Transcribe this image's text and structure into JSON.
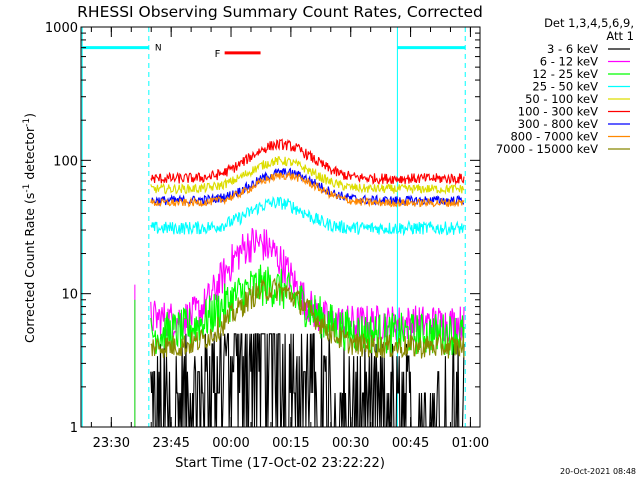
{
  "chart_data": {
    "type": "line",
    "title": "RHESSI Observing Summary Count Rates, Corrected",
    "xlabel": "Start Time (17-Oct-02 23:22:22)",
    "ylabel": "Corrected Count Rate (s-1 detector-1)",
    "ylabel_parts": {
      "main": "Corrected Count Rate (s",
      "sup1": "-1",
      "mid": " detector",
      "sup2": "-1",
      "close": ")"
    },
    "y_scale": "log",
    "ylim": [
      1,
      1000
    ],
    "y_ticks": [
      {
        "value": 1,
        "label": "1"
      },
      {
        "value": 10,
        "label": "10"
      },
      {
        "value": 100,
        "label": "100"
      },
      {
        "value": 1000,
        "label": "1000"
      }
    ],
    "xlim": [
      0,
      100
    ],
    "x_ticks": [
      {
        "value": 7.6,
        "label": "23:30"
      },
      {
        "value": 22.6,
        "label": "23:45"
      },
      {
        "value": 37.6,
        "label": "00:00"
      },
      {
        "value": 52.6,
        "label": "00:15"
      },
      {
        "value": 67.6,
        "label": "00:30"
      },
      {
        "value": 82.6,
        "label": "00:45"
      },
      {
        "value": 97.6,
        "label": "01:00"
      }
    ],
    "legend": {
      "placement": "right",
      "header": [
        "Det 1,3,4,5,6,9,",
        "Att 1"
      ]
    },
    "series": [
      {
        "name": "3 - 6 keV",
        "color": "#000000"
      },
      {
        "name": "6 - 12 keV",
        "color": "#ff00ff"
      },
      {
        "name": "12 - 25 keV",
        "color": "#00ff00"
      },
      {
        "name": "25 - 50 keV",
        "color": "#00ffff"
      },
      {
        "name": "50 - 100 keV",
        "color": "#dddd00"
      },
      {
        "name": "100 - 300 keV",
        "color": "#ff0000"
      },
      {
        "name": "300 - 800 keV",
        "color": "#0000ff"
      },
      {
        "name": "800 - 7000 keV",
        "color": "#ff8800"
      },
      {
        "name": "7000 - 15000 keV",
        "color": "#888800"
      }
    ],
    "annotations": [
      {
        "text": "N",
        "color": "#00ffff"
      },
      {
        "text": "F",
        "color": "#ff0000"
      }
    ],
    "footer": "20-Oct-2021 08:48"
  }
}
